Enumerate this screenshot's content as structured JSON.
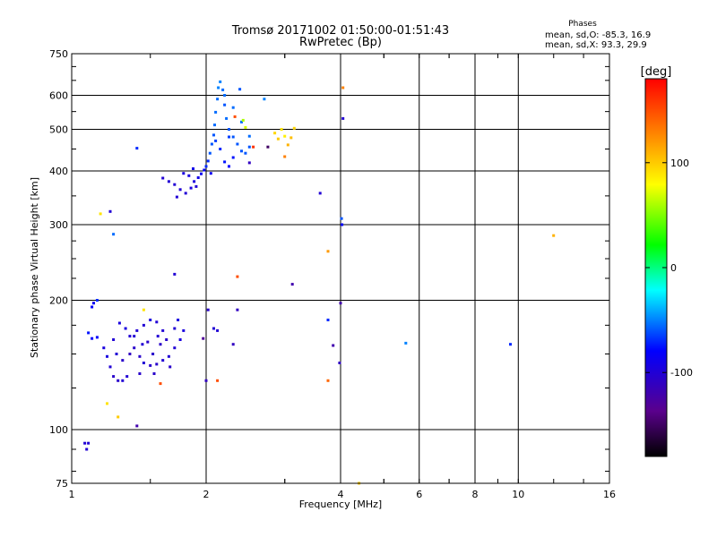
{
  "header": {
    "title_line1": "Tromsø 20171002 01:50:00-01:51:43",
    "title_line2": "RwPretec (Bp)",
    "phases_title": "Phases",
    "phases_o": "mean, sd,O: -85.3, 16.9",
    "phases_x": "mean, sd,X:  93.3, 29.9"
  },
  "chart_data": {
    "type": "scatter",
    "xlabel": "Frequency [MHz]",
    "ylabel": "Stationary phase Virtual Height [km]",
    "x_scale": "log",
    "y_scale": "log",
    "xlim": [
      1,
      16
    ],
    "ylim": [
      75,
      750
    ],
    "x_ticks": [
      1,
      2,
      4,
      6,
      8,
      10,
      16
    ],
    "x_tick_labels": [
      "1",
      "2",
      "4",
      "6",
      "8",
      "10",
      "16"
    ],
    "y_ticks": [
      75,
      100,
      200,
      300,
      400,
      500,
      600,
      750
    ],
    "y_tick_labels": [
      "75",
      "100",
      "200",
      "300",
      "400",
      "500",
      "600",
      "750"
    ],
    "grid": true,
    "colorbar": {
      "label": "[deg]",
      "range": [
        -180,
        180
      ],
      "ticks": [
        100,
        0,
        -100
      ],
      "tick_labels": [
        "100",
        "0",
        "-100"
      ]
    },
    "points": [
      {
        "x": 1.07,
        "y": 93,
        "p": -100
      },
      {
        "x": 1.09,
        "y": 93,
        "p": -100
      },
      {
        "x": 1.08,
        "y": 90,
        "p": -100
      },
      {
        "x": 1.12,
        "y": 197,
        "p": -85
      },
      {
        "x": 1.14,
        "y": 200,
        "p": -70
      },
      {
        "x": 1.11,
        "y": 193,
        "p": -80
      },
      {
        "x": 1.09,
        "y": 168,
        "p": -75
      },
      {
        "x": 1.11,
        "y": 163,
        "p": -80
      },
      {
        "x": 1.14,
        "y": 164,
        "p": -80
      },
      {
        "x": 1.18,
        "y": 155,
        "p": -95
      },
      {
        "x": 1.2,
        "y": 148,
        "p": -95
      },
      {
        "x": 1.22,
        "y": 140,
        "p": -100
      },
      {
        "x": 1.24,
        "y": 133,
        "p": -105
      },
      {
        "x": 1.27,
        "y": 130,
        "p": -105
      },
      {
        "x": 1.3,
        "y": 130,
        "p": -100
      },
      {
        "x": 1.33,
        "y": 133,
        "p": -100
      },
      {
        "x": 1.28,
        "y": 177,
        "p": -95
      },
      {
        "x": 1.32,
        "y": 172,
        "p": -95
      },
      {
        "x": 1.35,
        "y": 165,
        "p": -100
      },
      {
        "x": 1.38,
        "y": 155,
        "p": -105
      },
      {
        "x": 1.42,
        "y": 148,
        "p": -105
      },
      {
        "x": 1.45,
        "y": 143,
        "p": -100
      },
      {
        "x": 1.5,
        "y": 141,
        "p": -105
      },
      {
        "x": 1.55,
        "y": 142,
        "p": -105
      },
      {
        "x": 1.6,
        "y": 145,
        "p": -100
      },
      {
        "x": 1.65,
        "y": 148,
        "p": -100
      },
      {
        "x": 1.7,
        "y": 155,
        "p": -100
      },
      {
        "x": 1.75,
        "y": 162,
        "p": -95
      },
      {
        "x": 1.78,
        "y": 170,
        "p": -95
      },
      {
        "x": 1.6,
        "y": 170,
        "p": -100
      },
      {
        "x": 1.55,
        "y": 178,
        "p": -100
      },
      {
        "x": 1.5,
        "y": 180,
        "p": -95
      },
      {
        "x": 1.45,
        "y": 175,
        "p": -100
      },
      {
        "x": 1.4,
        "y": 170,
        "p": -100
      },
      {
        "x": 1.35,
        "y": 150,
        "p": -110
      },
      {
        "x": 1.48,
        "y": 160,
        "p": -105
      },
      {
        "x": 1.52,
        "y": 150,
        "p": -105
      },
      {
        "x": 1.58,
        "y": 158,
        "p": -105
      },
      {
        "x": 1.63,
        "y": 162,
        "p": -105
      },
      {
        "x": 1.7,
        "y": 172,
        "p": -100
      },
      {
        "x": 1.73,
        "y": 180,
        "p": -95
      },
      {
        "x": 1.66,
        "y": 140,
        "p": -105
      },
      {
        "x": 1.56,
        "y": 165,
        "p": -100
      },
      {
        "x": 1.44,
        "y": 158,
        "p": -100
      },
      {
        "x": 1.38,
        "y": 165,
        "p": -100
      },
      {
        "x": 1.26,
        "y": 150,
        "p": -100
      },
      {
        "x": 1.24,
        "y": 162,
        "p": -100
      },
      {
        "x": 1.3,
        "y": 145,
        "p": -105
      },
      {
        "x": 1.42,
        "y": 135,
        "p": -105
      },
      {
        "x": 1.53,
        "y": 135,
        "p": -105
      },
      {
        "x": 1.58,
        "y": 128,
        "p": 150
      },
      {
        "x": 1.45,
        "y": 190,
        "p": 90
      },
      {
        "x": 1.2,
        "y": 115,
        "p": 90
      },
      {
        "x": 1.27,
        "y": 107,
        "p": 100
      },
      {
        "x": 1.4,
        "y": 102,
        "p": -120
      },
      {
        "x": 1.97,
        "y": 163,
        "p": -130
      },
      {
        "x": 2.02,
        "y": 190,
        "p": -105
      },
      {
        "x": 2.08,
        "y": 172,
        "p": -100
      },
      {
        "x": 2.12,
        "y": 170,
        "p": -100
      },
      {
        "x": 2.0,
        "y": 130,
        "p": -110
      },
      {
        "x": 2.3,
        "y": 158,
        "p": -110
      },
      {
        "x": 2.35,
        "y": 190,
        "p": -110
      },
      {
        "x": 1.7,
        "y": 230,
        "p": -100
      },
      {
        "x": 2.35,
        "y": 227,
        "p": 150
      },
      {
        "x": 3.12,
        "y": 218,
        "p": -120
      },
      {
        "x": 2.12,
        "y": 130,
        "p": 150
      },
      {
        "x": 1.6,
        "y": 385,
        "p": -100
      },
      {
        "x": 1.65,
        "y": 378,
        "p": -100
      },
      {
        "x": 1.7,
        "y": 372,
        "p": -100
      },
      {
        "x": 1.75,
        "y": 362,
        "p": -100
      },
      {
        "x": 1.72,
        "y": 348,
        "p": -100
      },
      {
        "x": 1.8,
        "y": 355,
        "p": -100
      },
      {
        "x": 1.85,
        "y": 365,
        "p": -95
      },
      {
        "x": 1.88,
        "y": 378,
        "p": -95
      },
      {
        "x": 1.92,
        "y": 386,
        "p": -90
      },
      {
        "x": 1.95,
        "y": 394,
        "p": -85
      },
      {
        "x": 1.98,
        "y": 402,
        "p": -80
      },
      {
        "x": 2.0,
        "y": 410,
        "p": -70
      },
      {
        "x": 2.02,
        "y": 422,
        "p": -70
      },
      {
        "x": 2.04,
        "y": 440,
        "p": -60
      },
      {
        "x": 2.06,
        "y": 462,
        "p": -60
      },
      {
        "x": 2.08,
        "y": 485,
        "p": -60
      },
      {
        "x": 2.09,
        "y": 512,
        "p": -55
      },
      {
        "x": 2.1,
        "y": 548,
        "p": -55
      },
      {
        "x": 2.12,
        "y": 588,
        "p": -55
      },
      {
        "x": 2.13,
        "y": 625,
        "p": -50
      },
      {
        "x": 2.15,
        "y": 645,
        "p": -50
      },
      {
        "x": 2.18,
        "y": 618,
        "p": -55
      },
      {
        "x": 2.2,
        "y": 570,
        "p": -60
      },
      {
        "x": 2.22,
        "y": 530,
        "p": -55
      },
      {
        "x": 2.25,
        "y": 500,
        "p": -60
      },
      {
        "x": 2.3,
        "y": 480,
        "p": -60
      },
      {
        "x": 2.35,
        "y": 462,
        "p": -60
      },
      {
        "x": 2.4,
        "y": 445,
        "p": -60
      },
      {
        "x": 2.45,
        "y": 440,
        "p": -60
      },
      {
        "x": 2.5,
        "y": 455,
        "p": -60
      },
      {
        "x": 2.5,
        "y": 482,
        "p": -55
      },
      {
        "x": 2.15,
        "y": 450,
        "p": -70
      },
      {
        "x": 2.2,
        "y": 420,
        "p": -75
      },
      {
        "x": 2.25,
        "y": 410,
        "p": -80
      },
      {
        "x": 2.3,
        "y": 430,
        "p": -75
      },
      {
        "x": 1.9,
        "y": 368,
        "p": -100
      },
      {
        "x": 1.83,
        "y": 390,
        "p": -95
      },
      {
        "x": 1.78,
        "y": 395,
        "p": -95
      },
      {
        "x": 2.3,
        "y": 562,
        "p": -55
      },
      {
        "x": 2.38,
        "y": 620,
        "p": -60
      },
      {
        "x": 2.2,
        "y": 600,
        "p": -55
      },
      {
        "x": 2.1,
        "y": 470,
        "p": -65
      },
      {
        "x": 2.05,
        "y": 395,
        "p": -85
      },
      {
        "x": 1.87,
        "y": 405,
        "p": -90
      },
      {
        "x": 2.25,
        "y": 480,
        "p": -65
      },
      {
        "x": 2.4,
        "y": 520,
        "p": -55
      },
      {
        "x": 2.32,
        "y": 535,
        "p": 150
      },
      {
        "x": 2.42,
        "y": 525,
        "p": 60
      },
      {
        "x": 2.45,
        "y": 505,
        "p": 70
      },
      {
        "x": 2.55,
        "y": 455,
        "p": 160
      },
      {
        "x": 2.5,
        "y": 418,
        "p": -110
      },
      {
        "x": 2.7,
        "y": 588,
        "p": -50
      },
      {
        "x": 1.4,
        "y": 452,
        "p": -70
      },
      {
        "x": 1.22,
        "y": 322,
        "p": -100
      },
      {
        "x": 1.16,
        "y": 318,
        "p": 90
      },
      {
        "x": 1.24,
        "y": 285,
        "p": -55
      },
      {
        "x": 2.85,
        "y": 490,
        "p": 95
      },
      {
        "x": 2.9,
        "y": 475,
        "p": 100
      },
      {
        "x": 2.95,
        "y": 500,
        "p": 90
      },
      {
        "x": 3.0,
        "y": 482,
        "p": 85
      },
      {
        "x": 3.05,
        "y": 460,
        "p": 110
      },
      {
        "x": 3.1,
        "y": 478,
        "p": 105
      },
      {
        "x": 3.15,
        "y": 503,
        "p": 95
      },
      {
        "x": 3.0,
        "y": 432,
        "p": 130
      },
      {
        "x": 2.75,
        "y": 455,
        "p": -150
      },
      {
        "x": 3.6,
        "y": 355,
        "p": -100
      },
      {
        "x": 3.75,
        "y": 260,
        "p": 120
      },
      {
        "x": 3.75,
        "y": 180,
        "p": -70
      },
      {
        "x": 3.85,
        "y": 157,
        "p": -120
      },
      {
        "x": 3.75,
        "y": 130,
        "p": 140
      },
      {
        "x": 3.98,
        "y": 143,
        "p": -110
      },
      {
        "x": 4.0,
        "y": 197,
        "p": -120
      },
      {
        "x": 4.02,
        "y": 310,
        "p": -60
      },
      {
        "x": 4.03,
        "y": 300,
        "p": -80
      },
      {
        "x": 4.05,
        "y": 530,
        "p": -100
      },
      {
        "x": 4.05,
        "y": 625,
        "p": 130
      },
      {
        "x": 5.6,
        "y": 159,
        "p": -50
      },
      {
        "x": 9.6,
        "y": 158,
        "p": -70
      },
      {
        "x": 12.0,
        "y": 283,
        "p": 110
      },
      {
        "x": 4.4,
        "y": 75,
        "p": 100
      }
    ]
  }
}
